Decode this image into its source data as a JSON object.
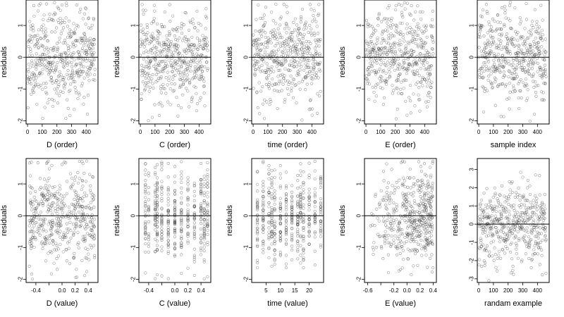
{
  "figure": {
    "description_none": ""
  },
  "chart_data": [
    {
      "type": "scatter",
      "xlabel": "D (order)",
      "ylabel": "residuals",
      "xlim": [
        -10,
        480
      ],
      "ylim": [
        -2.1,
        1.8
      ],
      "xticks": [
        0,
        100,
        200,
        300,
        400
      ],
      "yticks": [
        -2,
        -1,
        0,
        1
      ],
      "n": 460,
      "x_kind": "index",
      "hline": 0,
      "seed": 11
    },
    {
      "type": "scatter",
      "xlabel": "C (order)",
      "ylabel": "residuals",
      "xlim": [
        -10,
        480
      ],
      "ylim": [
        -2.1,
        1.8
      ],
      "xticks": [
        0,
        100,
        200,
        300,
        400
      ],
      "yticks": [
        -2,
        -1,
        0,
        1
      ],
      "n": 460,
      "x_kind": "index",
      "hline": 0,
      "seed": 22
    },
    {
      "type": "scatter",
      "xlabel": "time (order)",
      "ylabel": "residuals",
      "xlim": [
        -10,
        480
      ],
      "ylim": [
        -2.1,
        1.8
      ],
      "xticks": [
        0,
        100,
        200,
        300,
        400
      ],
      "yticks": [
        -2,
        -1,
        0,
        1
      ],
      "n": 460,
      "x_kind": "index",
      "hline": 0,
      "seed": 33
    },
    {
      "type": "scatter",
      "xlabel": "E (order)",
      "ylabel": "residuals",
      "xlim": [
        -10,
        480
      ],
      "ylim": [
        -2.1,
        1.8
      ],
      "xticks": [
        0,
        100,
        200,
        300,
        400
      ],
      "yticks": [
        -2,
        -1,
        0,
        1
      ],
      "n": 460,
      "x_kind": "index",
      "hline": 0,
      "seed": 44
    },
    {
      "type": "scatter",
      "xlabel": "sample index",
      "ylabel": "residuals",
      "xlim": [
        -10,
        480
      ],
      "ylim": [
        -2.1,
        1.8
      ],
      "xticks": [
        0,
        100,
        200,
        300,
        400
      ],
      "yticks": [
        -2,
        -1,
        0,
        1
      ],
      "n": 460,
      "x_kind": "index",
      "hline": 0,
      "seed": 55
    },
    {
      "type": "scatter",
      "xlabel": "D (value)",
      "ylabel": "residuals",
      "xlim": [
        -0.55,
        0.55
      ],
      "ylim": [
        -2.1,
        1.8
      ],
      "xticks": [
        -0.4,
        -0.2,
        0.0,
        0.2,
        0.4
      ],
      "xticklabels": [
        "-0.4",
        "",
        "0.0",
        "0.2",
        "0.4"
      ],
      "yticks": [
        -2,
        -1,
        0,
        1
      ],
      "n": 460,
      "x_kind": "uniform",
      "x_range": [
        -0.5,
        0.5
      ],
      "hline": 0,
      "seed": 66
    },
    {
      "type": "scatter",
      "xlabel": "C (value)",
      "ylabel": "residuals",
      "xlim": [
        -0.55,
        0.55
      ],
      "ylim": [
        -2.1,
        1.8
      ],
      "xticks": [
        -0.4,
        -0.2,
        0.0,
        0.2,
        0.4
      ],
      "xticklabels": [
        "-0.4",
        "",
        "0.0",
        "0.2",
        "0.4"
      ],
      "yticks": [
        -2,
        -1,
        0,
        1
      ],
      "n": 460,
      "x_kind": "discrete",
      "x_values": [
        -0.45,
        -0.4,
        -0.3,
        -0.27,
        -0.2,
        -0.1,
        0.0,
        0.1,
        0.2,
        0.3,
        0.4,
        0.45,
        0.5
      ],
      "hline": 0,
      "seed": 77
    },
    {
      "type": "scatter",
      "xlabel": "time (value)",
      "ylabel": "residuals",
      "xlim": [
        0,
        25
      ],
      "ylim": [
        -2.1,
        1.8
      ],
      "xticks": [
        5,
        10,
        15,
        20
      ],
      "yticks": [
        -2,
        -1,
        0,
        1
      ],
      "n": 460,
      "x_kind": "discrete",
      "x_values": [
        2,
        4,
        6,
        7,
        8,
        10,
        12,
        14,
        16,
        17,
        18,
        20,
        22,
        24
      ],
      "hline": 0,
      "seed": 88
    },
    {
      "type": "scatter",
      "xlabel": "E (value)",
      "ylabel": "residuals",
      "xlim": [
        -0.65,
        0.45
      ],
      "ylim": [
        -2.1,
        1.8
      ],
      "xticks": [
        -0.6,
        -0.4,
        -0.2,
        0.0,
        0.2,
        0.4
      ],
      "xticklabels": [
        "-0.6",
        "",
        "-0.2",
        "0.0",
        "0.2",
        "0.4"
      ],
      "yticks": [
        -2,
        -1,
        0,
        1
      ],
      "n": 460,
      "x_kind": "skewed",
      "x_range": [
        -0.6,
        0.4
      ],
      "hline": 0,
      "seed": 99
    },
    {
      "type": "scatter",
      "xlabel": "randam example",
      "ylabel": "residuals",
      "xlim": [
        -10,
        480
      ],
      "ylim": [
        -3.2,
        3.6
      ],
      "xticks": [
        0,
        100,
        200,
        300,
        400
      ],
      "yticks": [
        -3,
        -2,
        -1,
        0,
        1,
        2,
        3
      ],
      "n": 460,
      "x_kind": "index",
      "hline": 0,
      "seed": 111
    }
  ]
}
